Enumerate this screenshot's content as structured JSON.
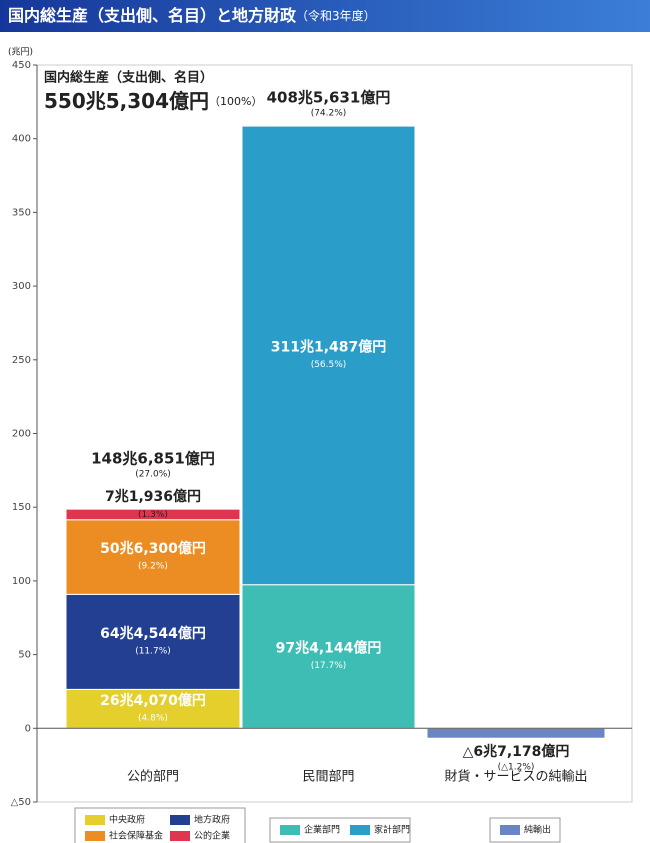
{
  "chart_data": {
    "type": "bar",
    "stacked": true,
    "title": "国内総生産（支出側、名目）と地方財政",
    "subtitle": "（令和3年度）",
    "y_label": "(兆円)",
    "ylim": [
      -50,
      450
    ],
    "yticks": [
      {
        "value": -50,
        "label": "△50"
      },
      0,
      50,
      100,
      150,
      200,
      250,
      300,
      350,
      400,
      450
    ],
    "categories": [
      "公的部門",
      "民間部門",
      "財貨・サービスの純輸出"
    ],
    "series": [
      {
        "name": "中央政府",
        "color": "#e4cf2c",
        "values": [
          26.407,
          null,
          null
        ],
        "value_labels": [
          "26兆4,070億円",
          null,
          null
        ],
        "share_labels": [
          "(4.8%)",
          null,
          null
        ]
      },
      {
        "name": "地方政府",
        "color": "#223f92",
        "values": [
          64.4544,
          null,
          null
        ],
        "value_labels": [
          "64兆4,544億円",
          null,
          null
        ],
        "share_labels": [
          "(11.7%)",
          null,
          null
        ]
      },
      {
        "name": "社会保障基金",
        "color": "#eb8d22",
        "values": [
          50.63,
          null,
          null
        ],
        "value_labels": [
          "50兆6,300億円",
          null,
          null
        ],
        "share_labels": [
          "(9.2%)",
          null,
          null
        ]
      },
      {
        "name": "公的企業",
        "color": "#e0354f",
        "values": [
          7.1936,
          null,
          null
        ],
        "value_labels": [
          "7兆1,936億円",
          null,
          null
        ],
        "share_labels": [
          "(1.3%)",
          null,
          null
        ]
      },
      {
        "name": "企業部門",
        "color": "#3dbdb3",
        "values": [
          null,
          97.4144,
          null
        ],
        "value_labels": [
          null,
          "97兆4,144億円",
          null
        ],
        "share_labels": [
          null,
          "(17.7%)",
          null
        ]
      },
      {
        "name": "家計部門",
        "color": "#2b9dc9",
        "values": [
          null,
          311.1487,
          null
        ],
        "value_labels": [
          null,
          "311兆1,487億円",
          null
        ],
        "share_labels": [
          null,
          "(56.5%)",
          null
        ]
      },
      {
        "name": "純輸出",
        "color": "#6b84c6",
        "values": [
          null,
          null,
          -6.7178
        ],
        "value_labels": [
          null,
          null,
          "△6兆7,178億円"
        ],
        "share_labels": [
          null,
          null,
          "(△1.2%)"
        ]
      }
    ],
    "totals": {
      "values": [
        148.6851,
        408.5631
      ],
      "value_labels": [
        "148兆6,851億円",
        "408兆5,631億円"
      ],
      "share_labels": [
        "(27.0%)",
        "(74.2%)"
      ]
    },
    "gdp": {
      "label": "国内総生産（支出側、名目）",
      "value_label": "550兆5,304億円",
      "share_label": "（100%）"
    }
  }
}
